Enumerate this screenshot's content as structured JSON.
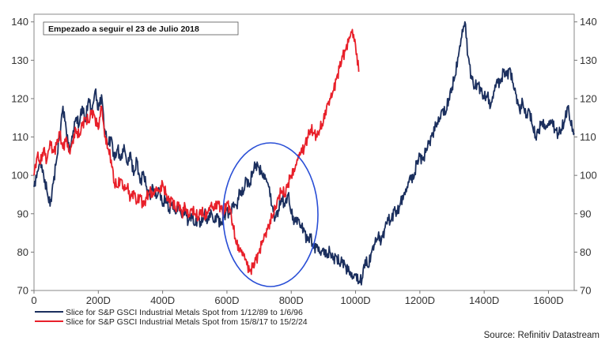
{
  "chart_data": {
    "type": "line",
    "title": "",
    "xlabel": "",
    "ylabel": "",
    "xlim": [
      0,
      1680
    ],
    "ylim": [
      70,
      142
    ],
    "x_ticks": [
      0,
      200,
      400,
      600,
      800,
      1000,
      1200,
      1400,
      1600
    ],
    "x_tick_labels": [
      "0",
      "200D",
      "400D",
      "600D",
      "800D",
      "1000D",
      "1200D",
      "1400D",
      "1600D"
    ],
    "y_ticks": [
      70,
      80,
      90,
      100,
      110,
      120,
      130,
      140
    ],
    "y_tick_labels": [
      "70",
      "80",
      "90",
      "100",
      "110",
      "120",
      "130",
      "140"
    ],
    "grid": false,
    "annotation": "Empezado a seguir el 23 de Julio 2018",
    "highlight": "ellipse around 600D–880D",
    "source": "Source: Refinitiv Datastream",
    "legend_position": "bottom-left",
    "series": [
      {
        "name": "Slice for S&P GSCI Industrial Metals Spot from 1/12/89 to 1/6/96",
        "color": "#1b2f5e",
        "points": [
          [
            0,
            97
          ],
          [
            10,
            101
          ],
          [
            20,
            104
          ],
          [
            30,
            100
          ],
          [
            40,
            96
          ],
          [
            50,
            92
          ],
          [
            60,
            98
          ],
          [
            70,
            104
          ],
          [
            80,
            111
          ],
          [
            90,
            118
          ],
          [
            100,
            112
          ],
          [
            110,
            106
          ],
          [
            120,
            110
          ],
          [
            130,
            115
          ],
          [
            140,
            113
          ],
          [
            150,
            118
          ],
          [
            160,
            114
          ],
          [
            170,
            120
          ],
          [
            180,
            116
          ],
          [
            190,
            122
          ],
          [
            200,
            117
          ],
          [
            210,
            121
          ],
          [
            220,
            112
          ],
          [
            230,
            108
          ],
          [
            240,
            110
          ],
          [
            250,
            104
          ],
          [
            260,
            107
          ],
          [
            270,
            104
          ],
          [
            280,
            108
          ],
          [
            290,
            103
          ],
          [
            300,
            106
          ],
          [
            310,
            100
          ],
          [
            320,
            104
          ],
          [
            330,
            98
          ],
          [
            340,
            101
          ],
          [
            350,
            97
          ],
          [
            360,
            95
          ],
          [
            370,
            97
          ],
          [
            380,
            94
          ],
          [
            390,
            96
          ],
          [
            400,
            92
          ],
          [
            410,
            94
          ],
          [
            420,
            91
          ],
          [
            430,
            93
          ],
          [
            440,
            90
          ],
          [
            450,
            92
          ],
          [
            460,
            89
          ],
          [
            470,
            91
          ],
          [
            480,
            88
          ],
          [
            490,
            90
          ],
          [
            500,
            87
          ],
          [
            510,
            89
          ],
          [
            520,
            87
          ],
          [
            530,
            90
          ],
          [
            540,
            88
          ],
          [
            550,
            91
          ],
          [
            560,
            88
          ],
          [
            570,
            90
          ],
          [
            580,
            87
          ],
          [
            590,
            89
          ],
          [
            600,
            91
          ],
          [
            610,
            90
          ],
          [
            620,
            93
          ],
          [
            630,
            92
          ],
          [
            640,
            96
          ],
          [
            650,
            95
          ],
          [
            660,
            99
          ],
          [
            670,
            97
          ],
          [
            680,
            101
          ],
          [
            690,
            103
          ],
          [
            700,
            102
          ],
          [
            710,
            100
          ],
          [
            720,
            99
          ],
          [
            730,
            97
          ],
          [
            740,
            92
          ],
          [
            750,
            89
          ],
          [
            760,
            91
          ],
          [
            770,
            94
          ],
          [
            780,
            92
          ],
          [
            790,
            95
          ],
          [
            800,
            90
          ],
          [
            810,
            88
          ],
          [
            820,
            89
          ],
          [
            830,
            87
          ],
          [
            840,
            86
          ],
          [
            850,
            83
          ],
          [
            860,
            84
          ],
          [
            870,
            81
          ],
          [
            880,
            82
          ],
          [
            890,
            80
          ],
          [
            900,
            81
          ],
          [
            910,
            79
          ],
          [
            920,
            80
          ],
          [
            930,
            78
          ],
          [
            940,
            79
          ],
          [
            950,
            77
          ],
          [
            960,
            78
          ],
          [
            970,
            76
          ],
          [
            980,
            75
          ],
          [
            990,
            73
          ],
          [
            1000,
            74
          ],
          [
            1010,
            72
          ],
          [
            1020,
            73
          ],
          [
            1030,
            78
          ],
          [
            1040,
            76
          ],
          [
            1050,
            80
          ],
          [
            1060,
            82
          ],
          [
            1070,
            84
          ],
          [
            1080,
            83
          ],
          [
            1090,
            86
          ],
          [
            1100,
            89
          ],
          [
            1110,
            88
          ],
          [
            1120,
            91
          ],
          [
            1130,
            90
          ],
          [
            1140,
            93
          ],
          [
            1150,
            95
          ],
          [
            1160,
            97
          ],
          [
            1170,
            100
          ],
          [
            1180,
            99
          ],
          [
            1190,
            103
          ],
          [
            1200,
            105
          ],
          [
            1210,
            104
          ],
          [
            1220,
            107
          ],
          [
            1230,
            109
          ],
          [
            1240,
            111
          ],
          [
            1250,
            113
          ],
          [
            1260,
            114
          ],
          [
            1270,
            117
          ],
          [
            1280,
            116
          ],
          [
            1290,
            120
          ],
          [
            1300,
            123
          ],
          [
            1310,
            126
          ],
          [
            1320,
            131
          ],
          [
            1330,
            136
          ],
          [
            1340,
            140
          ],
          [
            1350,
            131
          ],
          [
            1360,
            126
          ],
          [
            1370,
            123
          ],
          [
            1380,
            124
          ],
          [
            1390,
            122
          ],
          [
            1400,
            120
          ],
          [
            1410,
            121
          ],
          [
            1420,
            118
          ],
          [
            1430,
            122
          ],
          [
            1440,
            125
          ],
          [
            1450,
            124
          ],
          [
            1460,
            127
          ],
          [
            1470,
            126
          ],
          [
            1480,
            128
          ],
          [
            1490,
            124
          ],
          [
            1500,
            121
          ],
          [
            1510,
            117
          ],
          [
            1520,
            119
          ],
          [
            1530,
            115
          ],
          [
            1540,
            117
          ],
          [
            1550,
            113
          ],
          [
            1560,
            110
          ],
          [
            1570,
            112
          ],
          [
            1580,
            114
          ],
          [
            1590,
            112
          ],
          [
            1600,
            113
          ],
          [
            1610,
            114
          ],
          [
            1620,
            112
          ],
          [
            1630,
            111
          ],
          [
            1640,
            112
          ],
          [
            1650,
            114
          ],
          [
            1660,
            118
          ],
          [
            1670,
            113
          ],
          [
            1680,
            111
          ]
        ]
      },
      {
        "name": "Slice for S&P GSCI Industrial Metals Spot from 15/8/17 to 15/2/24",
        "color": "#e8202a",
        "points": [
          [
            0,
            100
          ],
          [
            10,
            105
          ],
          [
            20,
            103
          ],
          [
            30,
            107
          ],
          [
            40,
            104
          ],
          [
            50,
            109
          ],
          [
            60,
            106
          ],
          [
            70,
            108
          ],
          [
            80,
            111
          ],
          [
            90,
            107
          ],
          [
            100,
            110
          ],
          [
            110,
            106
          ],
          [
            120,
            109
          ],
          [
            130,
            112
          ],
          [
            140,
            110
          ],
          [
            150,
            113
          ],
          [
            160,
            115
          ],
          [
            170,
            114
          ],
          [
            180,
            117
          ],
          [
            190,
            115
          ],
          [
            200,
            112
          ],
          [
            210,
            118
          ],
          [
            220,
            110
          ],
          [
            230,
            107
          ],
          [
            240,
            104
          ],
          [
            250,
            98
          ],
          [
            260,
            97
          ],
          [
            270,
            99
          ],
          [
            280,
            96
          ],
          [
            290,
            97
          ],
          [
            300,
            94
          ],
          [
            310,
            96
          ],
          [
            320,
            93
          ],
          [
            330,
            95
          ],
          [
            340,
            92
          ],
          [
            350,
            94
          ],
          [
            360,
            96
          ],
          [
            370,
            95
          ],
          [
            380,
            97
          ],
          [
            390,
            96
          ],
          [
            400,
            98
          ],
          [
            410,
            95
          ],
          [
            420,
            93
          ],
          [
            430,
            94
          ],
          [
            440,
            91
          ],
          [
            450,
            93
          ],
          [
            460,
            90
          ],
          [
            470,
            92
          ],
          [
            480,
            89
          ],
          [
            490,
            91
          ],
          [
            500,
            90
          ],
          [
            510,
            89
          ],
          [
            520,
            91
          ],
          [
            530,
            89
          ],
          [
            540,
            90
          ],
          [
            550,
            92
          ],
          [
            560,
            91
          ],
          [
            570,
            93
          ],
          [
            580,
            92
          ],
          [
            590,
            90
          ],
          [
            600,
            93
          ],
          [
            610,
            91
          ],
          [
            620,
            86
          ],
          [
            630,
            82
          ],
          [
            640,
            81
          ],
          [
            650,
            80
          ],
          [
            660,
            78
          ],
          [
            670,
            75
          ],
          [
            680,
            76
          ],
          [
            690,
            78
          ],
          [
            700,
            80
          ],
          [
            710,
            83
          ],
          [
            720,
            85
          ],
          [
            730,
            87
          ],
          [
            740,
            89
          ],
          [
            750,
            91
          ],
          [
            760,
            94
          ],
          [
            770,
            96
          ],
          [
            780,
            95
          ],
          [
            790,
            98
          ],
          [
            800,
            100
          ],
          [
            810,
            101
          ],
          [
            820,
            104
          ],
          [
            830,
            106
          ],
          [
            840,
            107
          ],
          [
            850,
            110
          ],
          [
            860,
            112
          ],
          [
            870,
            111
          ],
          [
            880,
            110
          ],
          [
            890,
            112
          ],
          [
            900,
            114
          ],
          [
            910,
            118
          ],
          [
            920,
            120
          ],
          [
            930,
            122
          ],
          [
            940,
            125
          ],
          [
            950,
            128
          ],
          [
            960,
            131
          ],
          [
            970,
            133
          ],
          [
            980,
            136
          ],
          [
            990,
            138
          ],
          [
            1000,
            134
          ],
          [
            1010,
            127
          ]
        ]
      }
    ]
  }
}
